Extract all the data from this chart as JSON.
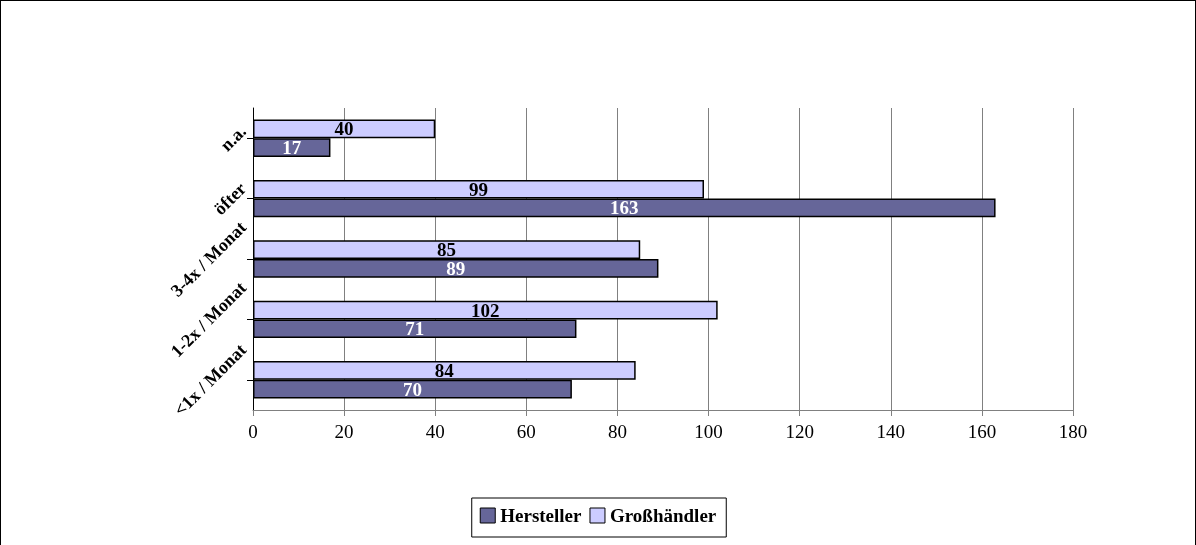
{
  "chart_data": {
    "type": "bar",
    "orientation": "horizontal",
    "categories": [
      "n.a.",
      "öfter",
      "3-4x / Monat",
      "1-2x / Monat",
      "<1x / Monat"
    ],
    "series": [
      {
        "name": "Hersteller",
        "color": "#666699",
        "values": [
          17,
          163,
          89,
          71,
          70
        ]
      },
      {
        "name": "Großhändler",
        "color": "#ccccff",
        "values": [
          40,
          99,
          85,
          102,
          84
        ]
      }
    ],
    "xlim": [
      0,
      180
    ],
    "xticks": [
      0,
      20,
      40,
      60,
      80,
      100,
      120,
      140,
      160,
      180
    ],
    "grid": "x",
    "legend": "bottom",
    "data_labels": true
  }
}
